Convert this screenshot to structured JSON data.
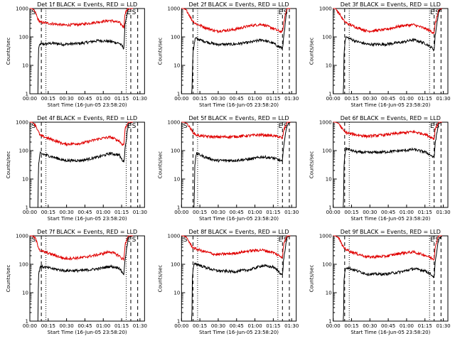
{
  "colors": {
    "events": "#000000",
    "lld": "#e00000",
    "background": "#ffffff"
  },
  "chart_data": [
    {
      "type": "line",
      "title": "Det 1f BLACK = Events, RED = LLD",
      "xlabel": "Start Time (16-Jun-05 23:58:20)",
      "ylabel": "Counts/sec",
      "yscale": "log",
      "ylim": [
        1,
        1000
      ],
      "xlim": [
        0,
        100
      ],
      "y_ticks": [
        "1",
        "10",
        "100",
        "1000"
      ],
      "x_ticks": [
        "00:00",
        "00:15",
        "00:30",
        "00:45",
        "01:00",
        "01:15",
        "01:30"
      ],
      "markers": [
        "S",
        "E",
        "S"
      ],
      "series": [
        {
          "name": "Events",
          "color": "black",
          "x": [
            0,
            7,
            7.5,
            9,
            20,
            30,
            45,
            60,
            70,
            78,
            80,
            82,
            83,
            86,
            90
          ],
          "y": [
            1,
            1,
            40,
            55,
            60,
            55,
            60,
            75,
            70,
            60,
            50,
            40,
            300,
            1000,
            1000
          ]
        },
        {
          "name": "LLD",
          "color": "red",
          "x": [
            0,
            2,
            5,
            7,
            9,
            20,
            30,
            45,
            60,
            70,
            78,
            80,
            82,
            83,
            86,
            90
          ],
          "y": [
            1000,
            1000,
            700,
            420,
            330,
            290,
            260,
            280,
            340,
            380,
            320,
            270,
            220,
            700,
            1000,
            1000
          ]
        }
      ]
    },
    {
      "type": "line",
      "title": "Det 2f BLACK = Events, RED = LLD",
      "xlabel": "Start Time (16-Jun-05 23:58:20)",
      "ylabel": "Counts/sec",
      "yscale": "log",
      "ylim": [
        1,
        1000
      ],
      "xlim": [
        0,
        100
      ],
      "y_ticks": [
        "1",
        "10",
        "100",
        "1000"
      ],
      "x_ticks": [
        "00:00",
        "00:15",
        "00:30",
        "00:45",
        "01:00",
        "01:15",
        "01:30"
      ],
      "markers": [
        "E",
        "S"
      ],
      "series": [
        {
          "name": "Events",
          "color": "black",
          "x": [
            0,
            9,
            10,
            12,
            20,
            30,
            45,
            60,
            70,
            80,
            85,
            88,
            90,
            92,
            95
          ],
          "y": [
            1,
            1,
            30,
            90,
            70,
            55,
            55,
            65,
            80,
            60,
            45,
            40,
            200,
            1000,
            1000
          ]
        },
        {
          "name": "LLD",
          "color": "red",
          "x": [
            0,
            2,
            5,
            9,
            12,
            20,
            30,
            45,
            60,
            70,
            80,
            85,
            88,
            90,
            92,
            95
          ],
          "y": [
            1000,
            1000,
            800,
            400,
            300,
            220,
            160,
            180,
            250,
            280,
            200,
            160,
            150,
            500,
            1000,
            1000
          ]
        }
      ]
    },
    {
      "type": "line",
      "title": "Det 3f BLACK = Events, RED = LLD",
      "xlabel": "Start Time (16-Jun-05 23:58:20)",
      "ylabel": "Counts/sec",
      "yscale": "log",
      "ylim": [
        1,
        1000
      ],
      "xlim": [
        0,
        100
      ],
      "y_ticks": [
        "1",
        "10",
        "100",
        "1000"
      ],
      "x_ticks": [
        "00:00",
        "00:15",
        "00:30",
        "00:45",
        "01:00",
        "01:15",
        "01:30"
      ],
      "markers": [
        "E",
        "S"
      ],
      "series": [
        {
          "name": "Events",
          "color": "black",
          "x": [
            0,
            9,
            9.5,
            11,
            20,
            30,
            45,
            60,
            70,
            80,
            85,
            88,
            89,
            92,
            95
          ],
          "y": [
            1,
            1,
            35,
            100,
            70,
            55,
            55,
            65,
            80,
            60,
            45,
            35,
            120,
            800,
            1000
          ]
        },
        {
          "name": "LLD",
          "color": "red",
          "x": [
            0,
            2,
            5,
            9,
            12,
            20,
            30,
            45,
            60,
            70,
            80,
            85,
            88,
            89,
            92,
            95
          ],
          "y": [
            1000,
            1000,
            700,
            380,
            300,
            220,
            160,
            180,
            250,
            270,
            200,
            160,
            140,
            300,
            900,
            1000
          ]
        }
      ]
    },
    {
      "type": "line",
      "title": "Det 4f BLACK = Events, RED = LLD",
      "xlabel": "Start Time (16-Jun-05 23:58:20)",
      "ylabel": "Counts/sec",
      "yscale": "log",
      "ylim": [
        1,
        1000
      ],
      "xlim": [
        0,
        100
      ],
      "y_ticks": [
        "1",
        "10",
        "100",
        "1000"
      ],
      "x_ticks": [
        "00:00",
        "00:15",
        "00:30",
        "00:45",
        "01:00",
        "01:15",
        "01:30"
      ],
      "markers": [
        "S",
        "E",
        "S"
      ],
      "series": [
        {
          "name": "Events",
          "color": "black",
          "x": [
            0,
            7,
            7.5,
            9,
            20,
            30,
            45,
            60,
            70,
            78,
            80,
            82,
            83,
            86,
            90
          ],
          "y": [
            1,
            1,
            30,
            80,
            60,
            45,
            45,
            60,
            80,
            70,
            50,
            40,
            120,
            900,
            1000
          ]
        },
        {
          "name": "LLD",
          "color": "red",
          "x": [
            0,
            2,
            5,
            7,
            9,
            20,
            30,
            45,
            60,
            70,
            78,
            80,
            82,
            83,
            86,
            90
          ],
          "y": [
            1000,
            1000,
            800,
            500,
            340,
            240,
            170,
            180,
            260,
            300,
            220,
            170,
            160,
            600,
            1000,
            1000
          ]
        }
      ]
    },
    {
      "type": "line",
      "title": "Det 5f BLACK = Events, RED = LLD",
      "xlabel": "Start Time (16-Jun-05 23:58:20)",
      "ylabel": "Counts/sec",
      "yscale": "log",
      "ylim": [
        1,
        1000
      ],
      "xlim": [
        0,
        100
      ],
      "y_ticks": [
        "1",
        "10",
        "100",
        "1000"
      ],
      "x_ticks": [
        "00:00",
        "00:15",
        "00:30",
        "00:45",
        "01:00",
        "01:15",
        "01:30"
      ],
      "markers": [
        "S",
        "E",
        "S"
      ],
      "series": [
        {
          "name": "Events",
          "color": "black",
          "x": [
            0,
            11,
            11.5,
            13,
            20,
            30,
            45,
            60,
            70,
            80,
            86,
            88,
            89,
            92,
            95
          ],
          "y": [
            1,
            1,
            30,
            80,
            60,
            45,
            45,
            50,
            60,
            55,
            45,
            40,
            150,
            800,
            1000
          ]
        },
        {
          "name": "LLD",
          "color": "red",
          "x": [
            0,
            2,
            5,
            9,
            11,
            13,
            20,
            30,
            45,
            60,
            70,
            80,
            86,
            88,
            89,
            92,
            95
          ],
          "y": [
            1000,
            1000,
            900,
            500,
            400,
            350,
            320,
            300,
            310,
            340,
            360,
            330,
            300,
            260,
            500,
            1000,
            1000
          ]
        }
      ]
    },
    {
      "type": "line",
      "title": "Det 6f BLACK = Events, RED = LLD",
      "xlabel": "Start Time (16-Jun-05 23:58:20)",
      "ylabel": "Counts/sec",
      "yscale": "log",
      "ylim": [
        1,
        1000
      ],
      "xlim": [
        0,
        100
      ],
      "y_ticks": [
        "1",
        "10",
        "100",
        "1000"
      ],
      "x_ticks": [
        "00:00",
        "00:15",
        "00:30",
        "00:45",
        "01:00",
        "01:15",
        "01:30"
      ],
      "markers": [
        "E",
        "S"
      ],
      "series": [
        {
          "name": "Events",
          "color": "black",
          "x": [
            0,
            9,
            9.5,
            11,
            20,
            30,
            45,
            60,
            70,
            80,
            85,
            88,
            89,
            92,
            95
          ],
          "y": [
            1,
            1,
            40,
            120,
            90,
            85,
            90,
            100,
            110,
            90,
            70,
            55,
            200,
            900,
            1000
          ]
        },
        {
          "name": "LLD",
          "color": "red",
          "x": [
            0,
            2,
            5,
            9,
            12,
            20,
            30,
            45,
            60,
            70,
            80,
            85,
            88,
            89,
            92,
            95
          ],
          "y": [
            1000,
            1000,
            900,
            500,
            420,
            360,
            320,
            360,
            420,
            460,
            380,
            300,
            260,
            600,
            1000,
            1000
          ]
        }
      ]
    },
    {
      "type": "line",
      "title": "Det 7f BLACK = Events, RED = LLD",
      "xlabel": "Start Time (16-Jun-05 23:58:20)",
      "ylabel": "Counts/sec",
      "yscale": "log",
      "ylim": [
        1,
        1000
      ],
      "xlim": [
        0,
        100
      ],
      "y_ticks": [
        "1",
        "10",
        "100",
        "1000"
      ],
      "x_ticks": [
        "00:00",
        "00:15",
        "00:30",
        "00:45",
        "01:00",
        "01:15",
        "01:30"
      ],
      "markers": [
        "S",
        "E",
        "S"
      ],
      "series": [
        {
          "name": "Events",
          "color": "black",
          "x": [
            0,
            7,
            7.5,
            9,
            20,
            30,
            45,
            60,
            70,
            78,
            80,
            82,
            83,
            86,
            90
          ],
          "y": [
            1,
            1,
            40,
            85,
            70,
            60,
            60,
            70,
            85,
            75,
            55,
            45,
            150,
            900,
            1000
          ]
        },
        {
          "name": "LLD",
          "color": "red",
          "x": [
            0,
            2,
            5,
            7,
            9,
            20,
            30,
            45,
            60,
            70,
            78,
            80,
            82,
            83,
            86,
            90
          ],
          "y": [
            1000,
            1000,
            800,
            450,
            300,
            220,
            160,
            170,
            220,
            280,
            200,
            160,
            150,
            500,
            1000,
            1000
          ]
        }
      ]
    },
    {
      "type": "line",
      "title": "Det 8f BLACK = Events, RED = LLD",
      "xlabel": "Start Time (16-Jun-05 23:58:20)",
      "ylabel": "Counts/sec",
      "yscale": "log",
      "ylim": [
        1,
        1000
      ],
      "xlim": [
        0,
        100
      ],
      "y_ticks": [
        "1",
        "10",
        "100",
        "1000"
      ],
      "x_ticks": [
        "00:00",
        "00:15",
        "00:30",
        "00:45",
        "01:00",
        "01:15",
        "01:30"
      ],
      "markers": [
        "S",
        "E",
        "S"
      ],
      "series": [
        {
          "name": "Events",
          "color": "black",
          "x": [
            0,
            9,
            9.5,
            11,
            20,
            30,
            45,
            60,
            70,
            80,
            85,
            88,
            89,
            92,
            95
          ],
          "y": [
            1,
            1,
            40,
            110,
            80,
            60,
            55,
            65,
            90,
            80,
            55,
            40,
            150,
            900,
            1000
          ]
        },
        {
          "name": "LLD",
          "color": "red",
          "x": [
            0,
            2,
            5,
            9,
            12,
            20,
            30,
            45,
            60,
            70,
            80,
            85,
            88,
            89,
            92,
            95
          ],
          "y": [
            1000,
            1000,
            800,
            420,
            350,
            280,
            220,
            240,
            300,
            320,
            260,
            200,
            180,
            500,
            1000,
            1000
          ]
        }
      ]
    },
    {
      "type": "line",
      "title": "Det 9f BLACK = Events, RED = LLD",
      "xlabel": "Start Time (16-Jun-05 23:58:20)",
      "ylabel": "Counts/sec",
      "yscale": "log",
      "ylim": [
        1,
        1000
      ],
      "xlim": [
        0,
        100
      ],
      "y_ticks": [
        "1",
        "10",
        "100",
        "1000"
      ],
      "x_ticks": [
        "00:00",
        "00:15",
        "00:30",
        "00:45",
        "01:00",
        "01:15",
        "01:30"
      ],
      "markers": [
        "E",
        "S"
      ],
      "series": [
        {
          "name": "Events",
          "color": "black",
          "x": [
            0,
            9,
            9.5,
            11,
            20,
            30,
            45,
            60,
            70,
            80,
            85,
            88,
            89,
            92,
            95
          ],
          "y": [
            1,
            1,
            35,
            80,
            60,
            45,
            45,
            55,
            70,
            60,
            45,
            35,
            120,
            800,
            1000
          ]
        },
        {
          "name": "LLD",
          "color": "red",
          "x": [
            0,
            2,
            5,
            9,
            12,
            20,
            30,
            45,
            60,
            70,
            80,
            85,
            88,
            89,
            92,
            95
          ],
          "y": [
            1000,
            1000,
            800,
            400,
            320,
            240,
            180,
            190,
            250,
            270,
            210,
            170,
            150,
            450,
            1000,
            1000
          ]
        }
      ]
    }
  ]
}
